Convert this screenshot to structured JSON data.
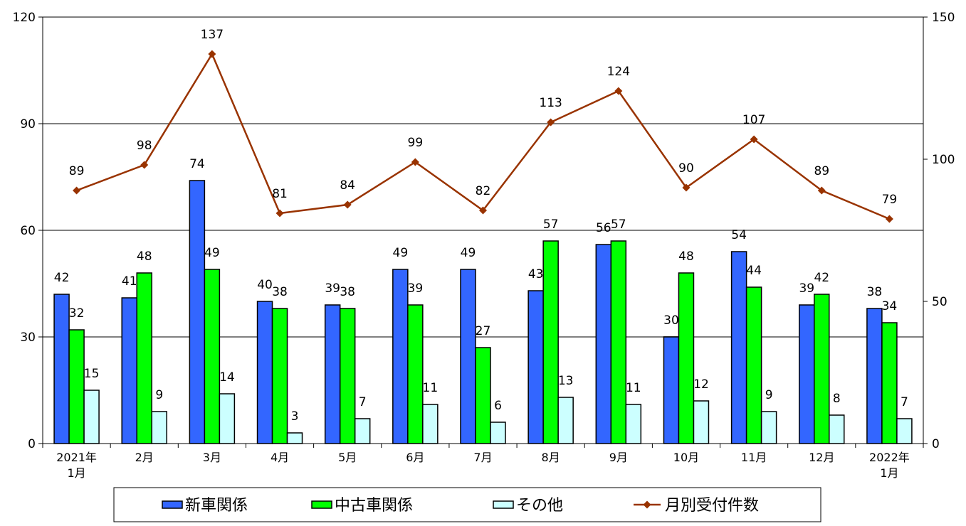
{
  "chart_data": {
    "type": "bar",
    "categories": [
      [
        "2021年",
        "1月"
      ],
      [
        "2月"
      ],
      [
        "3月"
      ],
      [
        "4月"
      ],
      [
        "5月"
      ],
      [
        "6月"
      ],
      [
        "7月"
      ],
      [
        "8月"
      ],
      [
        "9月"
      ],
      [
        "10月"
      ],
      [
        "11月"
      ],
      [
        "12月"
      ],
      [
        "2022年",
        "1月"
      ]
    ],
    "yticks_left": [
      "0",
      "30",
      "60",
      "90",
      "120"
    ],
    "yticks_right": [
      "0",
      "50",
      "100",
      "150"
    ],
    "ylim_left": [
      0,
      120
    ],
    "ylim_right": [
      0,
      150
    ],
    "grid": true,
    "legend_position": "bottom",
    "series": [
      {
        "name": "新車関係",
        "type": "bar",
        "axis": "left",
        "color": "#3366ff",
        "values": [
          42,
          41,
          74,
          40,
          39,
          49,
          49,
          43,
          56,
          30,
          54,
          39,
          38
        ]
      },
      {
        "name": "中古車関係",
        "type": "bar",
        "axis": "left",
        "color": "#00ff00",
        "values": [
          32,
          48,
          49,
          38,
          38,
          39,
          27,
          57,
          57,
          48,
          44,
          42,
          34
        ]
      },
      {
        "name": "その他",
        "type": "bar",
        "axis": "left",
        "color": "#ccffff",
        "values": [
          15,
          9,
          14,
          3,
          7,
          11,
          6,
          13,
          11,
          12,
          9,
          8,
          7
        ]
      },
      {
        "name": "月別受付件数",
        "type": "line",
        "axis": "right",
        "color": "#993300",
        "values": [
          89,
          98,
          137,
          81,
          84,
          99,
          82,
          113,
          124,
          90,
          107,
          89,
          79
        ]
      }
    ]
  }
}
